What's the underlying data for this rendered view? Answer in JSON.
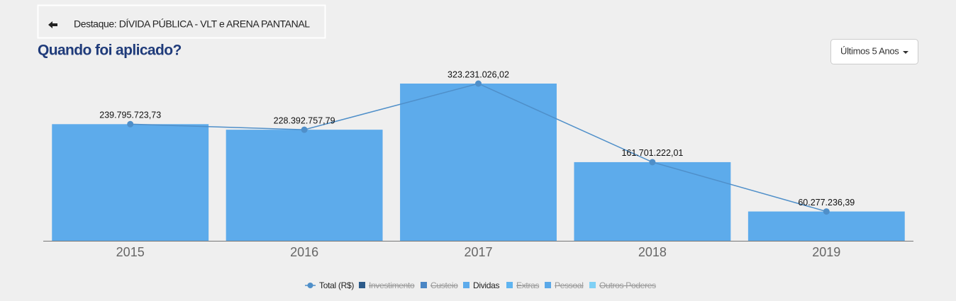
{
  "header": {
    "back_button": "Destaque: DÍVIDA PÚBLICA - VLT e ARENA PANTANAL",
    "period_dropdown": "Últimos 5 Anos"
  },
  "chart_data": {
    "type": "bar",
    "title": "Quando foi aplicado?",
    "categories": [
      "2015",
      "2016",
      "2017",
      "2018",
      "2019"
    ],
    "series": [
      {
        "name": "Total (R$)",
        "type": "line",
        "color": "#4f8fc9",
        "visible": true,
        "values": [
          239795723.73,
          228392757.79,
          323231026.02,
          161701222.01,
          60277236.39
        ],
        "value_labels": [
          "239.795.723,73",
          "228.392.757,79",
          "323.231.026,02",
          "161.701.222,01",
          "60.277.236,39"
        ]
      },
      {
        "name": "Investimento",
        "color": "#2d5b8a",
        "visible": false
      },
      {
        "name": "Custeio",
        "color": "#4a86c5",
        "visible": false
      },
      {
        "name": "Dividas",
        "type": "bar",
        "color": "#5dabeb",
        "visible": true,
        "values": [
          239795723.73,
          228392757.79,
          323231026.02,
          161701222.01,
          60277236.39
        ]
      },
      {
        "name": "Extras",
        "color": "#5fb4f0",
        "visible": false
      },
      {
        "name": "Pessoal",
        "color": "#5aa8e8",
        "visible": false
      },
      {
        "name": "Outros Poderes",
        "color": "#7fd0f5",
        "visible": false
      }
    ]
  }
}
